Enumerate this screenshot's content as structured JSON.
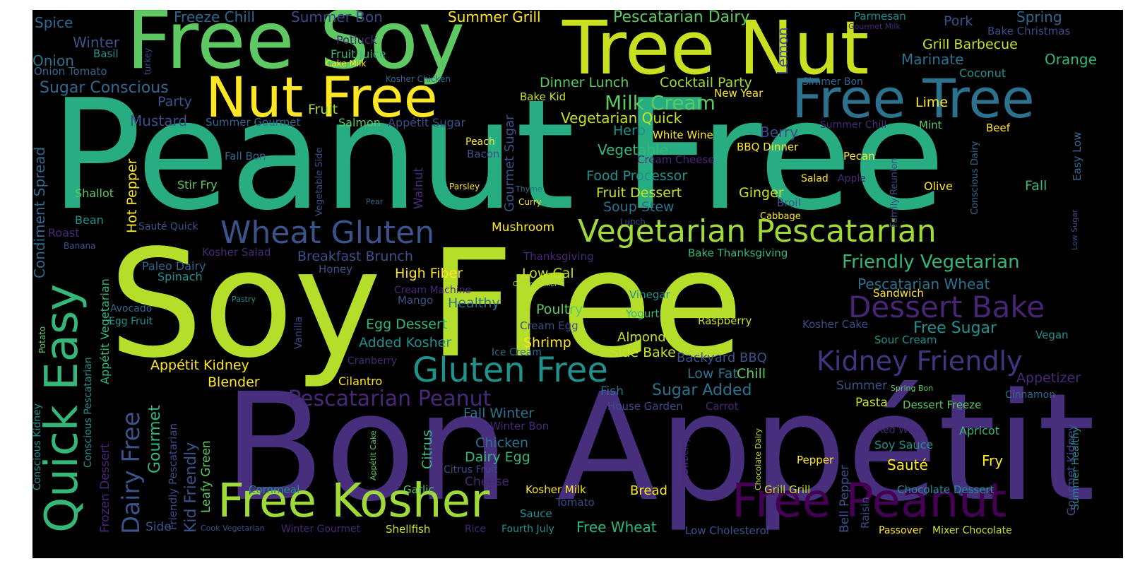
{
  "palette": {
    "indigo": "#472f7d",
    "violet": "#482475",
    "slate": "#3b528b",
    "teal": "#2c728e",
    "cyan": "#21918c",
    "seagreen": "#27ad81",
    "green": "#35b779",
    "leaf": "#5ec962",
    "lime": "#a0da39",
    "chartreuse": "#b5de2b",
    "yellow": "#fde725",
    "purple": "#440154",
    "dim": "#31688e"
  },
  "words": [
    {
      "text": "Peanut Free",
      "color": "#27ad81"
    },
    {
      "text": "Soy Free",
      "color": "#b5de2b"
    },
    {
      "text": "Bon Appétit",
      "color": "#472f7d"
    },
    {
      "text": "Free Soy",
      "color": "#5ec962"
    },
    {
      "text": "Tree Nut",
      "color": "#c8e020"
    },
    {
      "text": "Nut Free",
      "color": "#fde725"
    },
    {
      "text": "Free Tree",
      "color": "#2c728e"
    },
    {
      "text": "Quick Easy",
      "color": "#35b779"
    },
    {
      "text": "Free Kosher",
      "color": "#a0da39"
    },
    {
      "text": "Free Peanut",
      "color": "#440154"
    },
    {
      "text": "Gluten Free",
      "color": "#21918c"
    },
    {
      "text": "Wheat Gluten",
      "color": "#3b528b"
    },
    {
      "text": "Vegetarian Pescatarian",
      "color": "#a0da39"
    },
    {
      "text": "Dessert Bake",
      "color": "#482475"
    },
    {
      "text": "Kidney Friendly",
      "color": "#46337e"
    },
    {
      "text": "Pescatarian Peanut",
      "color": "#482878"
    },
    {
      "text": "Dairy Free",
      "color": "#3b528b"
    },
    {
      "text": "Milk Cream",
      "color": "#5ec962"
    },
    {
      "text": "Friendly Vegetarian",
      "color": "#35b779"
    },
    {
      "text": "Pescatarian Dairy",
      "color": "#5ec962"
    },
    {
      "text": "Summer Grill",
      "color": "#fde725"
    },
    {
      "text": "Freeze Chill",
      "color": "#31688e"
    },
    {
      "text": "Summer Bon",
      "color": "#3e4a89"
    },
    {
      "text": "Spice",
      "color": "#31688e"
    },
    {
      "text": "Winter",
      "color": "#3b528b"
    },
    {
      "text": "Onion",
      "color": "#2c728e"
    },
    {
      "text": "Basil",
      "color": "#21918c"
    },
    {
      "text": "Onion Tomato",
      "color": "#31688e"
    },
    {
      "text": "Potluck",
      "color": "#482878"
    },
    {
      "text": "Fruit Juice",
      "color": "#35b779"
    },
    {
      "text": "Cake Milk",
      "color": "#fde725"
    },
    {
      "text": "turkey",
      "color": "#3e4a89"
    },
    {
      "text": "Kosher Chicken",
      "color": "#31688e"
    },
    {
      "text": "Sugar Conscious",
      "color": "#31688e"
    },
    {
      "text": "Party",
      "color": "#3b528b"
    },
    {
      "text": "Fruit",
      "color": "#a0da39"
    },
    {
      "text": "Mustard",
      "color": "#3b528b"
    },
    {
      "text": "Summer Gourmet",
      "color": "#31688e"
    },
    {
      "text": "Salmon",
      "color": "#5ec962"
    },
    {
      "text": "Appétit Sugar",
      "color": "#3e4a89"
    },
    {
      "text": "Dinner Lunch",
      "color": "#5ec962"
    },
    {
      "text": "Cocktail Party",
      "color": "#a0da39"
    },
    {
      "text": "Bake Kid",
      "color": "#c8e020"
    },
    {
      "text": "New Year",
      "color": "#fde725"
    },
    {
      "text": "Lemon",
      "color": "#3b528b"
    },
    {
      "text": "Parmesan",
      "color": "#21918c"
    },
    {
      "text": "Gourmet Milk",
      "color": "#482878"
    },
    {
      "text": "Pork",
      "color": "#3b528b"
    },
    {
      "text": "Spring",
      "color": "#31688e"
    },
    {
      "text": "Bake Christmas",
      "color": "#3e4a89"
    },
    {
      "text": "Grill Barbecue",
      "color": "#c8e020"
    },
    {
      "text": "Marinate",
      "color": "#2c728e"
    },
    {
      "text": "Orange",
      "color": "#35b779"
    },
    {
      "text": "Coconut",
      "color": "#21918c"
    },
    {
      "text": "Simmer Bon",
      "color": "#31688e"
    },
    {
      "text": "Lime",
      "color": "#fde725"
    },
    {
      "text": "Vegetarian Quick",
      "color": "#c8e020"
    },
    {
      "text": "Gourmet Sugar",
      "color": "#3b528b"
    },
    {
      "text": "Herb",
      "color": "#21918c"
    },
    {
      "text": "White Wine",
      "color": "#fde725"
    },
    {
      "text": "Berry",
      "color": "#3e4a89"
    },
    {
      "text": "Mint",
      "color": "#5ec962"
    },
    {
      "text": "Beef",
      "color": "#fde725"
    },
    {
      "text": "Summer Chill",
      "color": "#482878"
    },
    {
      "text": "Easy Low",
      "color": "#31688e"
    },
    {
      "text": "Vegetable",
      "color": "#35b779"
    },
    {
      "text": "Cream Cheese",
      "color": "#482878"
    },
    {
      "text": "BBQ Dinner",
      "color": "#fde725"
    },
    {
      "text": "Conscious Dairy",
      "color": "#31688e"
    },
    {
      "text": "Family Reunion",
      "color": "#3e4a89"
    },
    {
      "text": "Pecan",
      "color": "#fde725"
    },
    {
      "text": "Peach",
      "color": "#fde725"
    },
    {
      "text": "Bacon",
      "color": "#3b528b"
    },
    {
      "text": "Fall Bon",
      "color": "#31688e"
    },
    {
      "text": "Condiment Spread",
      "color": "#31688e"
    },
    {
      "text": "Hot Pepper",
      "color": "#fde725"
    },
    {
      "text": "Vegetable Side",
      "color": "#3e4a89"
    },
    {
      "text": "Walnut",
      "color": "#482878"
    },
    {
      "text": "Thyme",
      "color": "#2c728e"
    },
    {
      "text": "Curry",
      "color": "#fde725"
    },
    {
      "text": "Parsley",
      "color": "#fde725"
    },
    {
      "text": "Stir Fry",
      "color": "#5ec962"
    },
    {
      "text": "Shallot",
      "color": "#5ec962"
    },
    {
      "text": "Food Processor",
      "color": "#21918c"
    },
    {
      "text": "Fruit Dessert",
      "color": "#c8e020"
    },
    {
      "text": "Ginger",
      "color": "#c8e020"
    },
    {
      "text": "Soup Stew",
      "color": "#2c728e"
    },
    {
      "text": "Broil",
      "color": "#3b528b"
    },
    {
      "text": "Salad",
      "color": "#fde725"
    },
    {
      "text": "Apple",
      "color": "#482878"
    },
    {
      "text": "Olive",
      "color": "#fde725"
    },
    {
      "text": "Fall",
      "color": "#35b779"
    },
    {
      "text": "Low Sugar",
      "color": "#3e4a89"
    },
    {
      "text": "Bean",
      "color": "#21918c"
    },
    {
      "text": "Pear",
      "color": "#31688e"
    },
    {
      "text": "Roast",
      "color": "#482878"
    },
    {
      "text": "Sauté Quick",
      "color": "#3b528b"
    },
    {
      "text": "Mushroom",
      "color": "#fde725"
    },
    {
      "text": "Lunch",
      "color": "#3e4a89"
    },
    {
      "text": "Cabbage",
      "color": "#fde725"
    },
    {
      "text": "Banana",
      "color": "#3b528b"
    },
    {
      "text": "Kosher Salad",
      "color": "#482878"
    },
    {
      "text": "Breakfast Brunch",
      "color": "#3b528b"
    },
    {
      "text": "Thanksgiving",
      "color": "#482878"
    },
    {
      "text": "Bake Thanksgiving",
      "color": "#35b779"
    },
    {
      "text": "Paleo Dairy",
      "color": "#31688e"
    },
    {
      "text": "Honey",
      "color": "#3b528b"
    },
    {
      "text": "Spinach",
      "color": "#21918c"
    },
    {
      "text": "High Fiber",
      "color": "#fde725"
    },
    {
      "text": "Low Cal",
      "color": "#c8e020"
    },
    {
      "text": "Cream Mixer",
      "color": "#b5de2b"
    },
    {
      "text": "Cream Machine",
      "color": "#482878"
    },
    {
      "text": "Pescatarian Wheat",
      "color": "#2c728e"
    },
    {
      "text": "Sandwich",
      "color": "#fde725"
    },
    {
      "text": "Appétit Vegetarian",
      "color": "#35b779"
    },
    {
      "text": "Pastry",
      "color": "#21918c"
    },
    {
      "text": "Avocado",
      "color": "#31688e"
    },
    {
      "text": "Egg Fruit",
      "color": "#21918c"
    },
    {
      "text": "Mango",
      "color": "#3b528b"
    },
    {
      "text": "Healthy",
      "color": "#2c728e"
    },
    {
      "text": "Vinegar",
      "color": "#21918c"
    },
    {
      "text": "Poultry",
      "color": "#5ec962"
    },
    {
      "text": "Yogurt",
      "color": "#35b779"
    },
    {
      "text": "Raspberry",
      "color": "#c8e020"
    },
    {
      "text": "Kosher Cake",
      "color": "#3e4a89"
    },
    {
      "text": "Vegan",
      "color": "#21918c"
    },
    {
      "text": "Potato",
      "color": "#5ec962"
    },
    {
      "text": "Vanilla",
      "color": "#3e4a89"
    },
    {
      "text": "Egg Dessert",
      "color": "#35b779"
    },
    {
      "text": "Cream Egg",
      "color": "#3e4a89"
    },
    {
      "text": "Almond",
      "color": "#c8e020"
    },
    {
      "text": "Free Sugar",
      "color": "#21918c"
    },
    {
      "text": "Sour Cream",
      "color": "#21918c"
    },
    {
      "text": "Conscious Pescatarian",
      "color": "#21918c"
    },
    {
      "text": "Added Kosher",
      "color": "#21918c"
    },
    {
      "text": "Shrimp",
      "color": "#fde725"
    },
    {
      "text": "Ice Cream",
      "color": "#31688e"
    },
    {
      "text": "Side Bake",
      "color": "#c8e020"
    },
    {
      "text": "Backyard BBQ",
      "color": "#3b528b"
    },
    {
      "text": "Appétit Kidney",
      "color": "#fde725"
    },
    {
      "text": "Cranberry",
      "color": "#482878"
    },
    {
      "text": "Conscious Kidney",
      "color": "#21918c"
    },
    {
      "text": "Low Fat",
      "color": "#2c728e"
    },
    {
      "text": "Chill",
      "color": "#5ec962"
    },
    {
      "text": "Appetizer",
      "color": "#482878"
    },
    {
      "text": "Blender",
      "color": "#fde725"
    },
    {
      "text": "Cilantro",
      "color": "#fde725"
    },
    {
      "text": "Gourmet",
      "color": "#35b779"
    },
    {
      "text": "Kid Friendly",
      "color": "#3b528b"
    },
    {
      "text": "Friendly Pescatarian",
      "color": "#3e4a89"
    },
    {
      "text": "Sugar Added",
      "color": "#2c728e"
    },
    {
      "text": "Fish",
      "color": "#2c728e"
    },
    {
      "text": "Summer",
      "color": "#3b528b"
    },
    {
      "text": "Spring Bon",
      "color": "#5ec962"
    },
    {
      "text": "Cinnamon",
      "color": "#31688e"
    },
    {
      "text": "House Garden",
      "color": "#3e4a89"
    },
    {
      "text": "Carrot",
      "color": "#482878"
    },
    {
      "text": "Pasta",
      "color": "#c8e020"
    },
    {
      "text": "Dessert Freeze",
      "color": "#5ec962"
    },
    {
      "text": "Summer Healthy",
      "color": "#21918c"
    },
    {
      "text": "Frozen Dessert",
      "color": "#482878"
    },
    {
      "text": "Leafy Green",
      "color": "#5ec962"
    },
    {
      "text": "Fall Winter",
      "color": "#2c728e"
    },
    {
      "text": "Winter Bon",
      "color": "#482878"
    },
    {
      "text": "Strawberry",
      "color": "#482878"
    },
    {
      "text": "Apricot",
      "color": "#35b779"
    },
    {
      "text": "Red Wine",
      "color": "#482878"
    },
    {
      "text": "Citrus",
      "color": "#35b779"
    },
    {
      "text": "Chicken",
      "color": "#2c728e"
    },
    {
      "text": "Dairy Egg",
      "color": "#35b779"
    },
    {
      "text": "Appétit Cake",
      "color": "#5ec962"
    },
    {
      "text": "Citrus Fruit",
      "color": "#3e4a89"
    },
    {
      "text": "Chocolate Dairy",
      "color": "#c8e020"
    },
    {
      "text": "Pepper",
      "color": "#fde725"
    },
    {
      "text": "Soy Sauce",
      "color": "#21918c"
    },
    {
      "text": "Gourmet Kidney",
      "color": "#3e4a89"
    },
    {
      "text": "Sauté",
      "color": "#fde725"
    },
    {
      "text": "Fry",
      "color": "#fde725"
    },
    {
      "text": "Cheese",
      "color": "#482878"
    },
    {
      "text": "Cornmeal",
      "color": "#21918c"
    },
    {
      "text": "Kosher Milk",
      "color": "#fde725"
    },
    {
      "text": "Bread",
      "color": "#fde725"
    },
    {
      "text": "Grill Grill",
      "color": "#c8e020"
    },
    {
      "text": "Bell Pepper",
      "color": "#3b528b"
    },
    {
      "text": "Raisin",
      "color": "#3e4a89"
    },
    {
      "text": "Chocolate Dessert",
      "color": "#21918c"
    },
    {
      "text": "Garlic",
      "color": "#5ec962"
    },
    {
      "text": "Tomato",
      "color": "#3e4a89"
    },
    {
      "text": "Sauce",
      "color": "#21918c"
    },
    {
      "text": "Side",
      "color": "#3b528b"
    },
    {
      "text": "Cook Vegetarian",
      "color": "#3b528b"
    },
    {
      "text": "Winter Gourmet",
      "color": "#482878"
    },
    {
      "text": "Shellfish",
      "color": "#c8e020"
    },
    {
      "text": "Rice",
      "color": "#482878"
    },
    {
      "text": "Fourth July",
      "color": "#21918c"
    },
    {
      "text": "Free Wheat",
      "color": "#35b779"
    },
    {
      "text": "Low Cholesterol",
      "color": "#3b528b"
    },
    {
      "text": "Passover",
      "color": "#fde725"
    },
    {
      "text": "Mixer Chocolate",
      "color": "#c8e020"
    }
  ]
}
